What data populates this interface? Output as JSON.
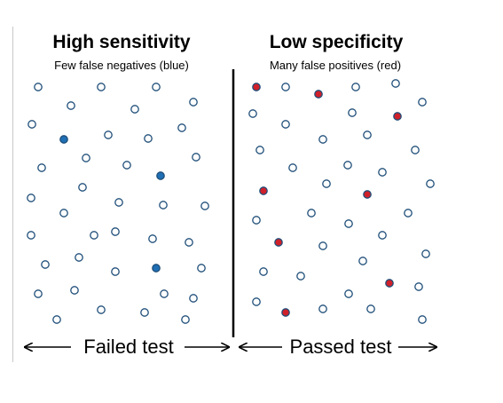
{
  "left_panel": {
    "title": "High sensitivity",
    "subtitle": "Few false negatives (blue)"
  },
  "right_panel": {
    "title": "Low specificity",
    "subtitle": "Many false positives (red)"
  },
  "bottom": {
    "failed_label": "Failed test",
    "passed_label": "Passed test"
  },
  "colors": {
    "outline": "#1f4e79",
    "false_negative": "#1f6fb5",
    "false_positive": "#d0202a",
    "divider": "#000000"
  }
}
